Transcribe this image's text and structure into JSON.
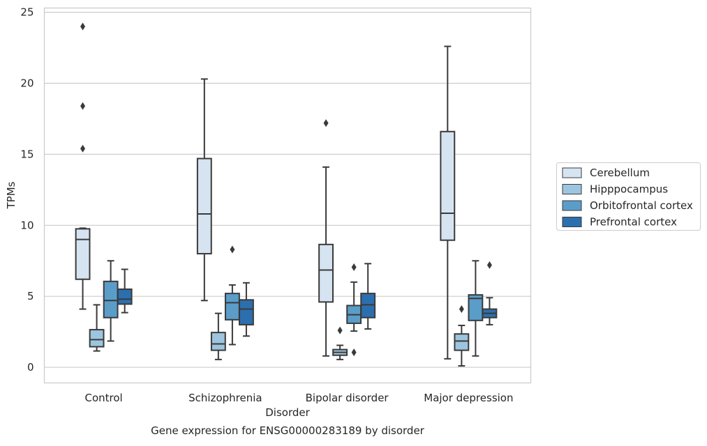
{
  "chart_data": {
    "type": "box",
    "title": "",
    "caption": "Gene expression for ENSG00000283189 by disorder",
    "xlabel": "Disorder",
    "ylabel": "TPMs",
    "ylim": [
      -1.1,
      25.3
    ],
    "yticks": [
      0,
      5,
      10,
      15,
      20,
      25
    ],
    "grid": "horizontal",
    "legend_position": "right",
    "categories": [
      "Control",
      "Schizophrenia",
      "Bipolar disorder",
      "Major depression"
    ],
    "series": [
      {
        "name": "Cerebellum",
        "color": "#d6e4f1",
        "boxes": [
          {
            "whisker_low": 4.1,
            "q1": 6.2,
            "median": 9.0,
            "q3": 9.75,
            "whisker_high": 9.8,
            "outliers": [
              15.4,
              18.4,
              24.0
            ]
          },
          {
            "whisker_low": 4.7,
            "q1": 8.0,
            "median": 10.8,
            "q3": 14.7,
            "whisker_high": 20.3,
            "outliers": []
          },
          {
            "whisker_low": 0.8,
            "q1": 4.6,
            "median": 6.85,
            "q3": 8.65,
            "whisker_high": 14.1,
            "outliers": [
              17.2
            ]
          },
          {
            "whisker_low": 0.6,
            "q1": 8.95,
            "median": 10.85,
            "q3": 16.6,
            "whisker_high": 22.6,
            "outliers": []
          }
        ]
      },
      {
        "name": "Hipppocampus",
        "color": "#9dc5df",
        "boxes": [
          {
            "whisker_low": 1.15,
            "q1": 1.45,
            "median": 1.95,
            "q3": 2.65,
            "whisker_high": 4.4,
            "outliers": []
          },
          {
            "whisker_low": 0.55,
            "q1": 1.2,
            "median": 1.65,
            "q3": 2.45,
            "whisker_high": 3.8,
            "outliers": []
          },
          {
            "whisker_low": 0.55,
            "q1": 0.85,
            "median": 1.05,
            "q3": 1.25,
            "whisker_high": 1.55,
            "outliers": [
              2.6
            ]
          },
          {
            "whisker_low": 0.1,
            "q1": 1.2,
            "median": 1.85,
            "q3": 2.35,
            "whisker_high": 2.95,
            "outliers": [
              4.1
            ]
          }
        ]
      },
      {
        "name": "Orbitofrontal cortex",
        "color": "#5b9dc9",
        "boxes": [
          {
            "whisker_low": 1.85,
            "q1": 3.5,
            "median": 4.7,
            "q3": 6.05,
            "whisker_high": 7.5,
            "outliers": []
          },
          {
            "whisker_low": 1.6,
            "q1": 3.35,
            "median": 4.55,
            "q3": 5.2,
            "whisker_high": 5.8,
            "outliers": [
              8.3
            ]
          },
          {
            "whisker_low": 2.55,
            "q1": 3.1,
            "median": 3.7,
            "q3": 4.35,
            "whisker_high": 6.0,
            "outliers": [
              1.05,
              7.05
            ]
          },
          {
            "whisker_low": 0.8,
            "q1": 3.3,
            "median": 4.85,
            "q3": 5.1,
            "whisker_high": 7.5,
            "outliers": []
          }
        ]
      },
      {
        "name": "Prefrontal cortex",
        "color": "#2c6fae",
        "boxes": [
          {
            "whisker_low": 3.85,
            "q1": 4.45,
            "median": 4.8,
            "q3": 5.5,
            "whisker_high": 6.9,
            "outliers": []
          },
          {
            "whisker_low": 2.2,
            "q1": 3.0,
            "median": 4.1,
            "q3": 4.75,
            "whisker_high": 5.95,
            "outliers": []
          },
          {
            "whisker_low": 2.7,
            "q1": 3.5,
            "median": 4.4,
            "q3": 5.2,
            "whisker_high": 7.3,
            "outliers": []
          },
          {
            "whisker_low": 3.0,
            "q1": 3.5,
            "median": 3.8,
            "q3": 4.1,
            "whisker_high": 4.9,
            "outliers": [
              7.2
            ]
          }
        ]
      }
    ]
  }
}
